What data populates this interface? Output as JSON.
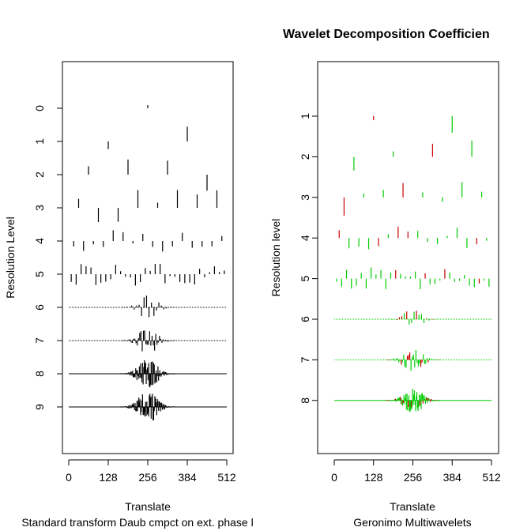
{
  "figure_title": "Wavelet Decomposition Coefficien",
  "chart_data": [
    {
      "type": "line",
      "panel": "left",
      "xlabel": "Translate",
      "sublabel": "Standard transform Daub cmpct on ext. phase l",
      "ylabel": "Resolution Level",
      "xlim": [
        -25,
        537
      ],
      "xticks": [
        "0",
        "128",
        "256",
        "384",
        "512"
      ],
      "tick_values": [
        0,
        128,
        256,
        384,
        512
      ],
      "levels": [
        "0",
        "1",
        "2",
        "3",
        "4",
        "5",
        "6",
        "7",
        "8",
        "9"
      ],
      "colors": [
        "#000000"
      ]
    },
    {
      "type": "line",
      "panel": "right",
      "xlabel": "Translate",
      "sublabel": "Geronimo Multiwavelets",
      "ylabel": "Resolution level",
      "xlim": [
        -25,
        537
      ],
      "xticks": [
        "0",
        "128",
        "256",
        "384",
        "512"
      ],
      "tick_values": [
        0,
        128,
        256,
        384,
        512
      ],
      "levels": [
        "1",
        "2",
        "3",
        "4",
        "5",
        "6",
        "7",
        "8"
      ],
      "colors": [
        "#00cc00",
        "#cc0000"
      ]
    }
  ]
}
